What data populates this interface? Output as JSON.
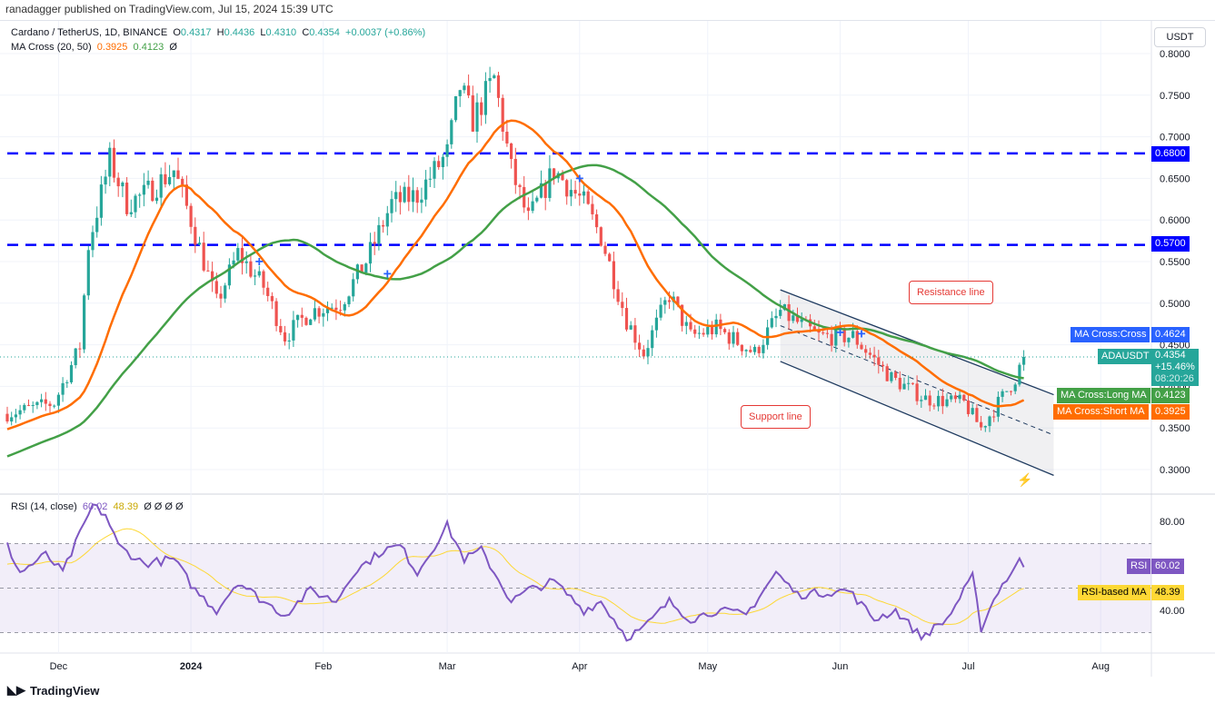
{
  "header": {
    "published": "ranadagger published on TradingView.com, Jul 15, 2024 15:39 UTC"
  },
  "legend": {
    "symbol": "Cardano / TetherUS, 1D, BINANCE",
    "o_label": "O",
    "o": "0.4317",
    "h_label": "H",
    "h": "0.4436",
    "l_label": "L",
    "l": "0.4310",
    "c_label": "C",
    "c": "0.4354",
    "change": "+0.0037 (+0.86%)",
    "ma_name": "MA Cross (20, 50)",
    "ma_short": "0.3925",
    "ma_long": "0.4123",
    "ma_extra": "Ø",
    "rsi_name": "RSI (14, close)",
    "rsi_val": "60.02",
    "rsi_ma": "48.39",
    "rsi_extra": "Ø Ø Ø Ø"
  },
  "currency_button": "USDT",
  "footer": {
    "brand": "TradingView"
  },
  "colors": {
    "up": "#26a69a",
    "down": "#ef5350",
    "short_ma": "#ff6d00",
    "long_ma": "#43a047",
    "rsi": "#7e57c2",
    "rsi_ma": "#fdd835",
    "levels": "#0000ff",
    "annotation": "#e53935"
  },
  "tags": {
    "cross_label": "MA Cross:Cross",
    "cross_val": "0.4624",
    "sym_label": "ADAUSDT",
    "sym_val": "0.4354",
    "sym_pct": "+15.46%",
    "sym_timer": "08:20:26",
    "long_label": "MA Cross:Long MA",
    "long_val": "0.4123",
    "short_label": "MA Cross:Short MA",
    "short_val": "0.3925",
    "level1": "0.6800",
    "level2": "0.5700",
    "rsi_label": "RSI",
    "rsi_val": "60.02",
    "rsima_label": "RSI-based MA",
    "rsima_val": "48.39"
  },
  "annotations": {
    "resistance": "Resistance line",
    "support": "Support line"
  },
  "chart_data": {
    "type": "candlestick",
    "title": "Cardano / TetherUS, 1D, BINANCE",
    "start_date": "2023-11-19",
    "price_ticks": [
      "0.8000",
      "0.7500",
      "0.7000",
      "0.6500",
      "0.6000",
      "0.5500",
      "0.5000",
      "0.4500",
      "0.4000",
      "0.3500",
      "0.3000"
    ],
    "ylim": [
      0.3,
      0.8
    ],
    "x_ticks": [
      {
        "label": "Dec",
        "day": 12
      },
      {
        "label": "2024",
        "day": 43
      },
      {
        "label": "Feb",
        "day": 74
      },
      {
        "label": "Mar",
        "day": 103
      },
      {
        "label": "Apr",
        "day": 134
      },
      {
        "label": "May",
        "day": 164
      },
      {
        "label": "Jun",
        "day": 195
      },
      {
        "label": "Jul",
        "day": 225
      },
      {
        "label": "Aug",
        "day": 256
      }
    ],
    "close_anchors": [
      [
        0,
        0.367
      ],
      [
        11,
        0.38
      ],
      [
        17,
        0.448
      ],
      [
        19,
        0.57
      ],
      [
        24,
        0.672
      ],
      [
        28,
        0.62
      ],
      [
        32,
        0.63
      ],
      [
        39,
        0.66
      ],
      [
        43,
        0.6
      ],
      [
        49,
        0.5
      ],
      [
        54,
        0.56
      ],
      [
        60,
        0.52
      ],
      [
        65,
        0.46
      ],
      [
        71,
        0.49
      ],
      [
        78,
        0.5
      ],
      [
        84,
        0.55
      ],
      [
        90,
        0.62
      ],
      [
        96,
        0.63
      ],
      [
        103,
        0.68
      ],
      [
        106,
        0.76
      ],
      [
        109,
        0.72
      ],
      [
        114,
        0.77
      ],
      [
        118,
        0.66
      ],
      [
        122,
        0.6
      ],
      [
        128,
        0.66
      ],
      [
        135,
        0.62
      ],
      [
        139,
        0.58
      ],
      [
        145,
        0.48
      ],
      [
        149,
        0.44
      ],
      [
        155,
        0.51
      ],
      [
        160,
        0.46
      ],
      [
        166,
        0.47
      ],
      [
        175,
        0.44
      ],
      [
        181,
        0.49
      ],
      [
        190,
        0.46
      ],
      [
        198,
        0.46
      ],
      [
        207,
        0.41
      ],
      [
        215,
        0.385
      ],
      [
        224,
        0.38
      ],
      [
        228,
        0.35
      ],
      [
        232,
        0.38
      ],
      [
        236,
        0.41
      ],
      [
        238,
        0.4354
      ]
    ],
    "horizontal_levels": [
      0.68,
      0.57
    ],
    "ma_periods": [
      20,
      50
    ],
    "cross_points": [
      [
        59,
        0.55
      ],
      [
        89,
        0.535
      ],
      [
        134,
        0.65
      ],
      [
        195,
        0.465
      ],
      [
        200,
        0.463
      ]
    ],
    "channel": {
      "resistance": [
        [
          181,
          0.516
        ],
        [
          245,
          0.39
        ]
      ],
      "support": [
        [
          181,
          0.43
        ],
        [
          245,
          0.293
        ]
      ]
    },
    "rsi_ticks": [
      "80.00",
      "40.00"
    ],
    "rsi_levels": [
      70,
      50,
      30
    ],
    "rsi_anchors": [
      [
        0,
        69
      ],
      [
        3,
        57
      ],
      [
        9,
        65
      ],
      [
        13,
        57
      ],
      [
        20,
        87
      ],
      [
        23,
        83
      ],
      [
        26,
        69
      ],
      [
        32,
        61
      ],
      [
        39,
        63
      ],
      [
        44,
        49
      ],
      [
        49,
        40
      ],
      [
        54,
        53
      ],
      [
        60,
        44
      ],
      [
        65,
        38
      ],
      [
        71,
        49
      ],
      [
        77,
        44
      ],
      [
        81,
        57
      ],
      [
        88,
        67
      ],
      [
        92,
        69
      ],
      [
        96,
        57
      ],
      [
        103,
        78
      ],
      [
        107,
        63
      ],
      [
        111,
        67
      ],
      [
        118,
        44
      ],
      [
        122,
        49
      ],
      [
        128,
        53
      ],
      [
        135,
        40
      ],
      [
        139,
        44
      ],
      [
        145,
        28
      ],
      [
        149,
        32
      ],
      [
        155,
        44
      ],
      [
        160,
        36
      ],
      [
        166,
        40
      ],
      [
        173,
        38
      ],
      [
        180,
        57
      ],
      [
        185,
        47
      ],
      [
        197,
        49
      ],
      [
        203,
        36
      ],
      [
        208,
        40
      ],
      [
        214,
        28
      ],
      [
        220,
        36
      ],
      [
        226,
        55
      ],
      [
        228,
        32
      ],
      [
        232,
        49
      ],
      [
        237,
        62
      ],
      [
        238,
        60
      ]
    ],
    "rsi_ma_period": 14
  }
}
